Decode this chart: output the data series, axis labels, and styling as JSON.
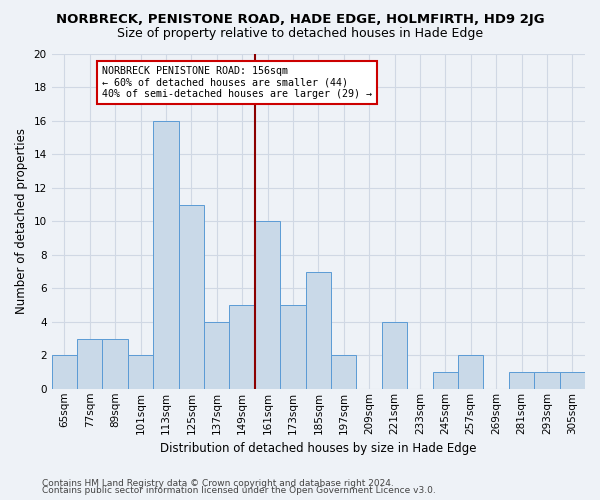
{
  "title": "NORBRECK, PENISTONE ROAD, HADE EDGE, HOLMFIRTH, HD9 2JG",
  "subtitle": "Size of property relative to detached houses in Hade Edge",
  "xlabel": "Distribution of detached houses by size in Hade Edge",
  "ylabel": "Number of detached properties",
  "bin_labels": [
    "65sqm",
    "77sqm",
    "89sqm",
    "101sqm",
    "113sqm",
    "125sqm",
    "137sqm",
    "149sqm",
    "161sqm",
    "173sqm",
    "185sqm",
    "197sqm",
    "209sqm",
    "221sqm",
    "233sqm",
    "245sqm",
    "257sqm",
    "269sqm",
    "281sqm",
    "293sqm",
    "305sqm"
  ],
  "counts": [
    2,
    3,
    3,
    2,
    16,
    11,
    4,
    5,
    10,
    5,
    7,
    2,
    0,
    4,
    0,
    1,
    2,
    0,
    1,
    1,
    1
  ],
  "bar_color": "#c9d9e8",
  "bar_edge_color": "#5b9bd5",
  "grid_color": "#d0d8e4",
  "marker_bin": 7.5,
  "marker_color": "#8b0000",
  "annotation_text": "NORBRECK PENISTONE ROAD: 156sqm\n← 60% of detached houses are smaller (44)\n40% of semi-detached houses are larger (29) →",
  "annotation_box_color": "#ffffff",
  "annotation_box_edge": "#cc0000",
  "ylim": [
    0,
    20
  ],
  "yticks": [
    0,
    2,
    4,
    6,
    8,
    10,
    12,
    14,
    16,
    18,
    20
  ],
  "footer1": "Contains HM Land Registry data © Crown copyright and database right 2024.",
  "footer2": "Contains public sector information licensed under the Open Government Licence v3.0.",
  "bg_color": "#eef2f7",
  "title_fontsize": 9.5,
  "subtitle_fontsize": 9,
  "ylabel_fontsize": 8.5,
  "xlabel_fontsize": 8.5,
  "tick_fontsize": 7.5,
  "footer_fontsize": 6.5
}
